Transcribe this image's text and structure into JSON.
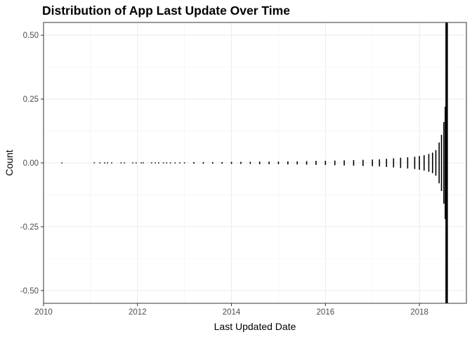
{
  "chart_data": {
    "type": "bar",
    "title": "Distribution of App Last Update Over Time",
    "xlabel": "Last Updated Date",
    "ylabel": "Count",
    "xlim": [
      2010.0,
      2019.0
    ],
    "ylim": [
      -0.55,
      0.55
    ],
    "x_ticks": [
      2010,
      2012,
      2014,
      2016,
      2018
    ],
    "x_tick_labels": [
      "2010",
      "2012",
      "2014",
      "2016",
      "2018"
    ],
    "y_ticks": [
      -0.5,
      -0.25,
      0,
      0.25,
      0.5
    ],
    "y_tick_labels": [
      "-0.50",
      "-0.25",
      "0.00",
      "0.25",
      "0.50"
    ],
    "grid": true,
    "legend": "none",
    "bar_color": "#000000",
    "description_of_marks": "daily bars centered on 0; height grows toward mid-2018",
    "series": [
      {
        "x": [
          2010.39,
          2011.08,
          2011.2,
          2011.3,
          2011.36,
          2011.45,
          2011.65,
          2011.72,
          2011.9,
          2011.97,
          2012.08,
          2012.12,
          2012.3,
          2012.38,
          2012.45,
          2012.55,
          2012.62,
          2012.7,
          2012.8,
          2012.9,
          2013.0,
          2013.2,
          2013.4,
          2013.6,
          2013.8,
          2014.0,
          2014.2,
          2014.4,
          2014.6,
          2014.8,
          2015.0,
          2015.2,
          2015.4,
          2015.6,
          2015.8,
          2016.0,
          2016.2,
          2016.4,
          2016.6,
          2016.8,
          2017.0,
          2017.15,
          2017.3,
          2017.45,
          2017.6,
          2017.75,
          2017.9,
          2018.0,
          2018.1,
          2018.2,
          2018.28,
          2018.35,
          2018.42,
          2018.47,
          2018.52,
          2018.55,
          2018.58
        ],
        "half_height": [
          0.002,
          0.002,
          0.002,
          0.002,
          0.002,
          0.002,
          0.002,
          0.002,
          0.002,
          0.002,
          0.002,
          0.002,
          0.002,
          0.002,
          0.002,
          0.002,
          0.002,
          0.002,
          0.002,
          0.002,
          0.002,
          0.003,
          0.003,
          0.003,
          0.003,
          0.004,
          0.004,
          0.004,
          0.005,
          0.005,
          0.005,
          0.006,
          0.006,
          0.007,
          0.008,
          0.008,
          0.009,
          0.01,
          0.011,
          0.012,
          0.013,
          0.014,
          0.016,
          0.018,
          0.02,
          0.022,
          0.024,
          0.027,
          0.03,
          0.035,
          0.04,
          0.05,
          0.08,
          0.11,
          0.16,
          0.22,
          0.55
        ]
      }
    ]
  }
}
